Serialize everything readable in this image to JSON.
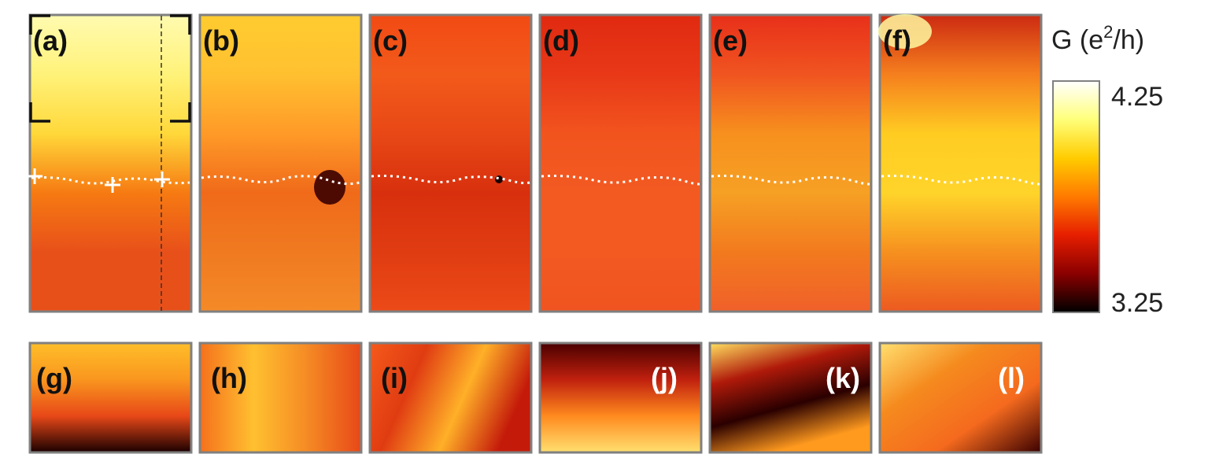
{
  "colorbar": {
    "title_prefix": "G (e",
    "title_sup": "2",
    "title_suffix": "/h)",
    "max_label": "4.25",
    "min_label": "3.25",
    "colors": [
      "#000000",
      "#8a0000",
      "#e61e00",
      "#ff7a00",
      "#ffcc00",
      "#ffff7a",
      "#ffffff"
    ]
  },
  "panels_top": [
    {
      "label": "(a)",
      "colors": [
        "#fffbb0",
        "#fff27a",
        "#ffd83a",
        "#f67a12",
        "#e8501a",
        "#e8501a"
      ]
    },
    {
      "label": "(b)",
      "colors": [
        "#ffcc30",
        "#ffc030",
        "#ff9a28",
        "#f06a1a",
        "#f07a20",
        "#f48a28"
      ]
    },
    {
      "label": "(c)",
      "colors": [
        "#f24a14",
        "#f25a1a",
        "#e84816",
        "#d8300e",
        "#e03c12",
        "#ec4a18"
      ]
    },
    {
      "label": "(d)",
      "colors": [
        "#e02a10",
        "#e83818",
        "#f2541e",
        "#f25a22",
        "#f25a22",
        "#f05420"
      ]
    },
    {
      "label": "(e)",
      "colors": [
        "#e8301a",
        "#f05420",
        "#f7901e",
        "#f6a024",
        "#f27a1e",
        "#f0602a"
      ]
    },
    {
      "label": "(f)",
      "colors": [
        "#cc2a12",
        "#f57f1e",
        "#ffcc22",
        "#ffd42a",
        "#f6901f",
        "#ec5a20"
      ]
    }
  ],
  "panels_bottom": [
    {
      "label": "(g)",
      "colors": [
        "#ffbe2a",
        "#f9961e",
        "#e84818",
        "#1a0000"
      ]
    },
    {
      "label": "(h)",
      "colors": [
        "#f5701c",
        "#ffc030",
        "#f58a24",
        "#e84818"
      ]
    },
    {
      "label": "(i)",
      "colors": [
        "#f55a1a",
        "#e03c12",
        "#ffb028",
        "#c41a0a"
      ]
    },
    {
      "label": "(j)",
      "colors": [
        "#4a0000",
        "#c0200e",
        "#ff8a1e",
        "#ffe070"
      ]
    },
    {
      "label": "(k)",
      "colors": [
        "#ffe060",
        "#b01a0a",
        "#2a0000",
        "#ff9a1e"
      ]
    },
    {
      "label": "(l)",
      "colors": [
        "#ffe070",
        "#f58a1e",
        "#f56a1e",
        "#3a0000"
      ]
    }
  ]
}
